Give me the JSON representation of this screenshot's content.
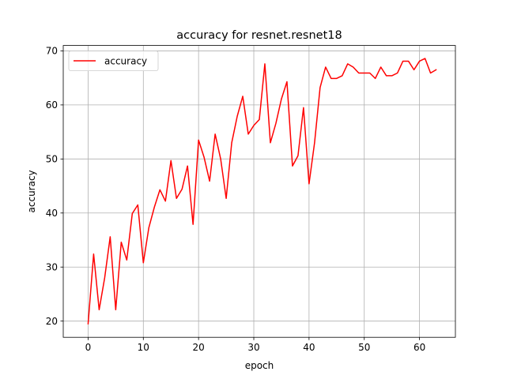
{
  "chart_data": {
    "type": "line",
    "title": "accuracy for resnet.resnet18",
    "xlabel": "epoch",
    "ylabel": "accuracy",
    "xlim": [
      -4.5,
      66.5
    ],
    "ylim": [
      17.0,
      71.0
    ],
    "xticks": [
      0,
      10,
      20,
      30,
      40,
      50,
      60
    ],
    "yticks": [
      20,
      30,
      40,
      50,
      60,
      70
    ],
    "grid": true,
    "legend_position": "upper-left",
    "series": [
      {
        "name": "accuracy",
        "color": "#ff0000",
        "x": [
          0,
          1,
          2,
          3,
          4,
          5,
          6,
          7,
          8,
          9,
          10,
          11,
          12,
          13,
          14,
          15,
          16,
          17,
          18,
          19,
          20,
          21,
          22,
          23,
          24,
          25,
          26,
          27,
          28,
          29,
          30,
          31,
          32,
          33,
          34,
          35,
          36,
          37,
          38,
          39,
          40,
          41,
          42,
          43,
          44,
          45,
          46,
          47,
          48,
          49,
          50,
          51,
          52,
          53,
          54,
          55,
          56,
          57,
          58,
          59,
          60,
          61,
          62,
          63
        ],
        "y": [
          19.5,
          32.4,
          22.1,
          28.0,
          35.6,
          22.1,
          34.6,
          31.3,
          39.9,
          41.5,
          30.8,
          37.3,
          41.1,
          44.3,
          42.2,
          49.7,
          42.7,
          44.4,
          48.7,
          37.9,
          53.5,
          50.3,
          45.9,
          54.6,
          50.0,
          42.7,
          53.0,
          57.9,
          61.6,
          54.6,
          56.2,
          57.3,
          67.6,
          53.0,
          56.6,
          61.1,
          64.3,
          48.7,
          50.6,
          59.5,
          45.4,
          53.0,
          63.2,
          67.0,
          64.9,
          64.9,
          65.4,
          67.6,
          67.0,
          65.9,
          65.9,
          65.9,
          64.9,
          67.0,
          65.4,
          65.4,
          65.9,
          68.1,
          68.1,
          66.5,
          68.1,
          68.6,
          65.9,
          66.5
        ]
      }
    ]
  }
}
